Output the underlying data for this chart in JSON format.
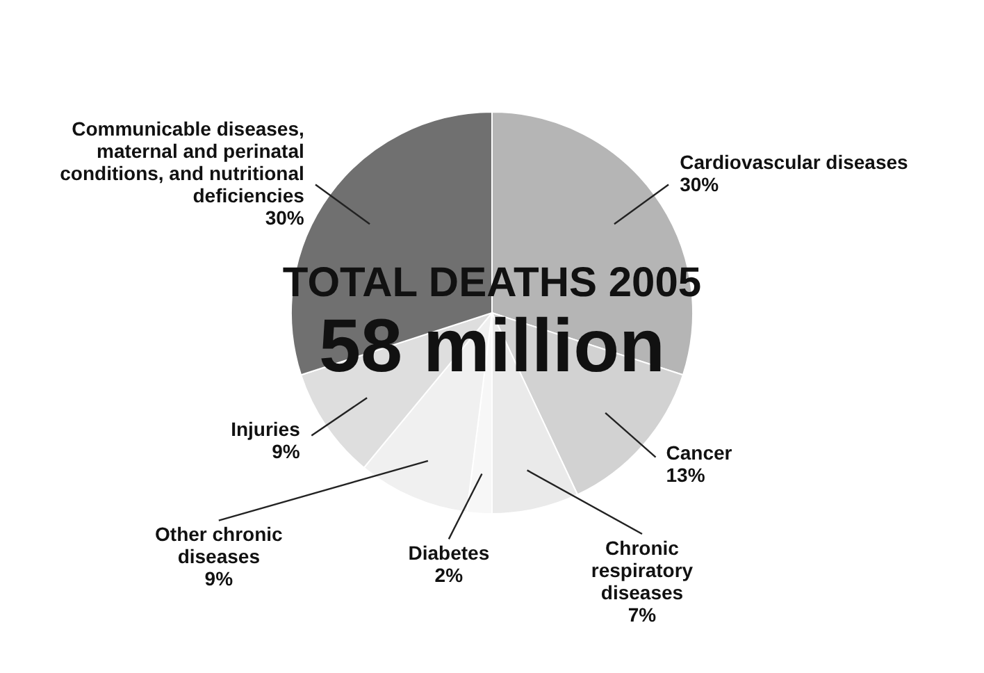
{
  "chart_data": {
    "type": "pie",
    "title": "TOTAL DEATHS 2005",
    "subtitle": "58 million",
    "categories": [
      "Cardiovascular diseases",
      "Cancer",
      "Chronic respiratory diseases",
      "Diabetes",
      "Other chronic diseases",
      "Injuries",
      "Communicable diseases, maternal and perinatal conditions, and nutritional deficiencies"
    ],
    "values": [
      30,
      13,
      7,
      2,
      9,
      9,
      30
    ],
    "value_labels": [
      "30%",
      "13%",
      "7%",
      "2%",
      "9%",
      "9%",
      "30%"
    ],
    "colors": [
      "#b5b5b5",
      "#d2d2d2",
      "#eaeaea",
      "#f7f7f7",
      "#f0f0f0",
      "#dedede",
      "#707070"
    ]
  }
}
